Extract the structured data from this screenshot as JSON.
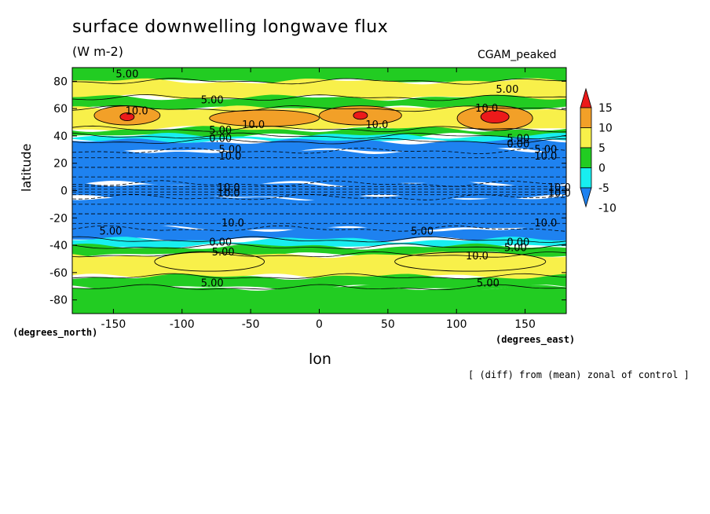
{
  "chart_data": {
    "type": "heatmap",
    "title": "surface downwelling longwave flux",
    "units": "(W m-2)",
    "model_label": "CGAM_peaked",
    "xlabel": "lon",
    "ylabel": "latitude",
    "x_units_label": "(degrees_east)",
    "y_units_label": "(degrees_north)",
    "footnote": "[ (diff) from (mean) zonal of control ]",
    "xlim": [
      -180,
      180
    ],
    "ylim": [
      -90,
      90
    ],
    "x_ticks": [
      -150,
      -100,
      -50,
      0,
      50,
      100,
      150
    ],
    "x_tick_labels": [
      "-150",
      "-100",
      "-50",
      "0",
      "50",
      "100",
      "150"
    ],
    "y_ticks": [
      80,
      60,
      40,
      20,
      0,
      -20,
      -40,
      -60,
      -80
    ],
    "y_tick_labels": [
      "80",
      "60",
      "40",
      "20",
      "0",
      "-20",
      "-40",
      "-60",
      "-80"
    ],
    "colorbar": {
      "levels": [
        15,
        10,
        5,
        0,
        -5,
        -10
      ],
      "labels": [
        "15",
        "10",
        "5",
        "0",
        "-5",
        "-10"
      ],
      "colors": [
        "#ec1a1a",
        "#f2a028",
        "#f8f04a",
        "#22cc22",
        "#18eef0",
        "#1e82f0"
      ]
    },
    "latitude_bands": [
      {
        "lat": [
          80,
          90
        ],
        "value": 2
      },
      {
        "lat": [
          68,
          80
        ],
        "value": 6
      },
      {
        "lat": [
          60,
          68
        ],
        "value": 3
      },
      {
        "lat": [
          45,
          60
        ],
        "value": 9
      },
      {
        "lat": [
          40,
          45
        ],
        "value": 2
      },
      {
        "lat": [
          36,
          40
        ],
        "value": -1
      },
      {
        "lat": [
          29,
          36
        ],
        "value": -6
      },
      {
        "lat": [
          5,
          29
        ],
        "value": -20
      },
      {
        "lat": [
          -5,
          5
        ],
        "value": -25
      },
      {
        "lat": [
          -28,
          -5
        ],
        "value": -20
      },
      {
        "lat": [
          -36,
          -28
        ],
        "value": -6
      },
      {
        "lat": [
          -41,
          -36
        ],
        "value": -1
      },
      {
        "lat": [
          -47,
          -41
        ],
        "value": 3
      },
      {
        "lat": [
          -63,
          -47
        ],
        "value": 8
      },
      {
        "lat": [
          -71,
          -63
        ],
        "value": 4
      },
      {
        "lat": [
          -90,
          -71
        ],
        "value": 1
      }
    ],
    "maxima": [
      {
        "lon": -140,
        "lat": 55,
        "lon_span": 48,
        "lat_span": 14,
        "value": 12
      },
      {
        "lon": -40,
        "lat": 53,
        "lon_span": 80,
        "lat_span": 12,
        "value": 11
      },
      {
        "lon": 30,
        "lat": 55,
        "lon_span": 60,
        "lat_span": 14,
        "value": 12
      },
      {
        "lon": 128,
        "lat": 53,
        "lon_span": 55,
        "lat_span": 18,
        "value": 13
      },
      {
        "lon": -80,
        "lat": -52,
        "lon_span": 80,
        "lat_span": 14,
        "value": 9
      },
      {
        "lon": 110,
        "lat": -52,
        "lon_span": 110,
        "lat_span": 14,
        "value": 9
      }
    ],
    "peaks": [
      {
        "lon": -140,
        "lat": 54,
        "value": 16
      },
      {
        "lon": 30,
        "lat": 55,
        "value": 16
      },
      {
        "lon": 128,
        "lat": 54,
        "value": 18
      }
    ],
    "contour_labels": [
      {
        "text": "5.00",
        "lon": -140,
        "lat": 85
      },
      {
        "text": "5.00",
        "lon": -78,
        "lat": 66
      },
      {
        "text": "5.00",
        "lon": 137,
        "lat": 74
      },
      {
        "text": "10.0",
        "lon": -133,
        "lat": 58
      },
      {
        "text": "10.0",
        "lon": -48,
        "lat": 48
      },
      {
        "text": "10.0",
        "lon": 42,
        "lat": 48
      },
      {
        "text": "10.0",
        "lon": 122,
        "lat": 60
      },
      {
        "text": "5.00",
        "lon": -72,
        "lat": 44
      },
      {
        "text": "0.00",
        "lon": -72,
        "lat": 38
      },
      {
        "text": "5.00",
        "lon": -65,
        "lat": 30
      },
      {
        "text": "10.0",
        "lon": -65,
        "lat": 25
      },
      {
        "text": "5.00",
        "lon": 145,
        "lat": 38
      },
      {
        "text": "0.00",
        "lon": 145,
        "lat": 34
      },
      {
        "text": "5.00",
        "lon": 165,
        "lat": 30
      },
      {
        "text": "10.0",
        "lon": 165,
        "lat": 25
      },
      {
        "text": "10.0",
        "lon": -66,
        "lat": 2
      },
      {
        "text": "10.0",
        "lon": -66,
        "lat": -2
      },
      {
        "text": "10.0",
        "lon": 175,
        "lat": 2
      },
      {
        "text": "10.0",
        "lon": 175,
        "lat": -2
      },
      {
        "text": "10.0",
        "lon": -63,
        "lat": -24
      },
      {
        "text": "5.00",
        "lon": -152,
        "lat": -30
      },
      {
        "text": "5.00",
        "lon": 75,
        "lat": -30
      },
      {
        "text": "10.0",
        "lon": 165,
        "lat": -24
      },
      {
        "text": "0.00",
        "lon": -72,
        "lat": -38
      },
      {
        "text": "5.00",
        "lon": -70,
        "lat": -45
      },
      {
        "text": "10.0",
        "lon": 115,
        "lat": -48
      },
      {
        "text": "0.00",
        "lon": 145,
        "lat": -38
      },
      {
        "text": "5.00",
        "lon": 143,
        "lat": -42
      },
      {
        "text": "5.00",
        "lon": -78,
        "lat": -68
      },
      {
        "text": "5.00",
        "lon": 123,
        "lat": -68
      }
    ]
  }
}
